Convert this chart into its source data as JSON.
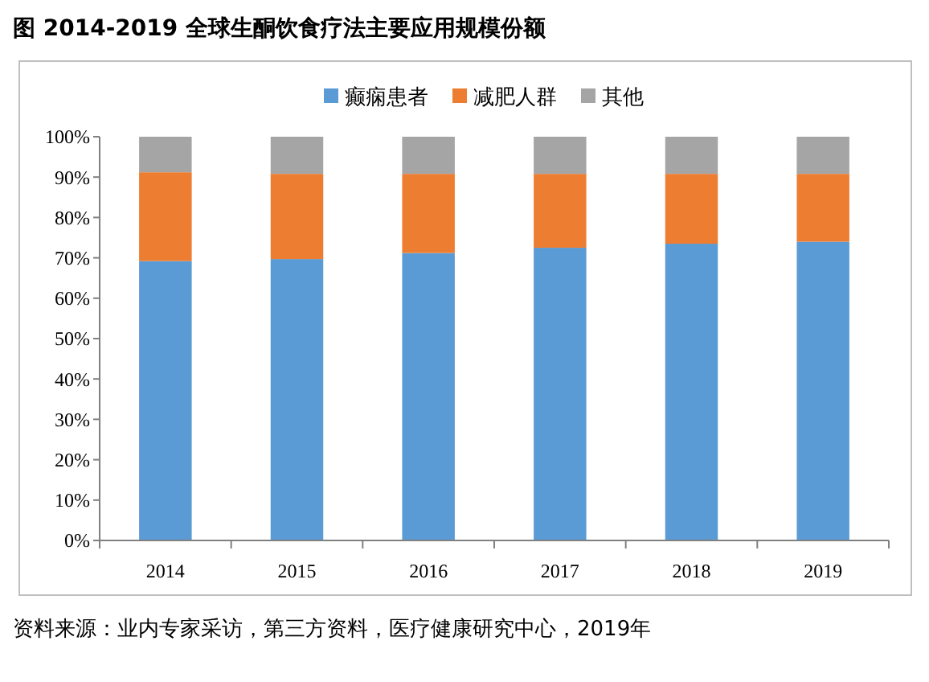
{
  "chart_data": {
    "type": "bar",
    "title": "图  2014-2019 全球生酮饮食疗法主要应用规模份额",
    "categories": [
      "2014",
      "2015",
      "2016",
      "2017",
      "2018",
      "2019"
    ],
    "stacked": true,
    "series": [
      {
        "name": "癫痫患者",
        "color": "#5b9bd5",
        "values": [
          69.2,
          69.7,
          71.2,
          72.5,
          73.5,
          74.0
        ]
      },
      {
        "name": "减肥人群",
        "color": "#ed7d31",
        "values": [
          22.0,
          21.1,
          19.6,
          18.3,
          17.3,
          16.8
        ]
      },
      {
        "name": "其他",
        "color": "#a5a5a5",
        "values": [
          8.8,
          9.2,
          9.2,
          9.2,
          9.2,
          9.2
        ]
      }
    ],
    "ylim": [
      0,
      100
    ],
    "yticks": [
      {
        "value": 0,
        "label": "0%"
      },
      {
        "value": 10,
        "label": "10%"
      },
      {
        "value": 20,
        "label": "20%"
      },
      {
        "value": 30,
        "label": "30%"
      },
      {
        "value": 40,
        "label": "40%"
      },
      {
        "value": 50,
        "label": "50%"
      },
      {
        "value": 60,
        "label": "60%"
      },
      {
        "value": 70,
        "label": "70%"
      },
      {
        "value": 80,
        "label": "80%"
      },
      {
        "value": 90,
        "label": "90%"
      },
      {
        "value": 100,
        "label": "100%"
      }
    ],
    "grid": false,
    "legend": "top",
    "annotations": [
      "资料来源：业内专家采访，第三方资料，医疗健康研究中心，2019年"
    ]
  }
}
